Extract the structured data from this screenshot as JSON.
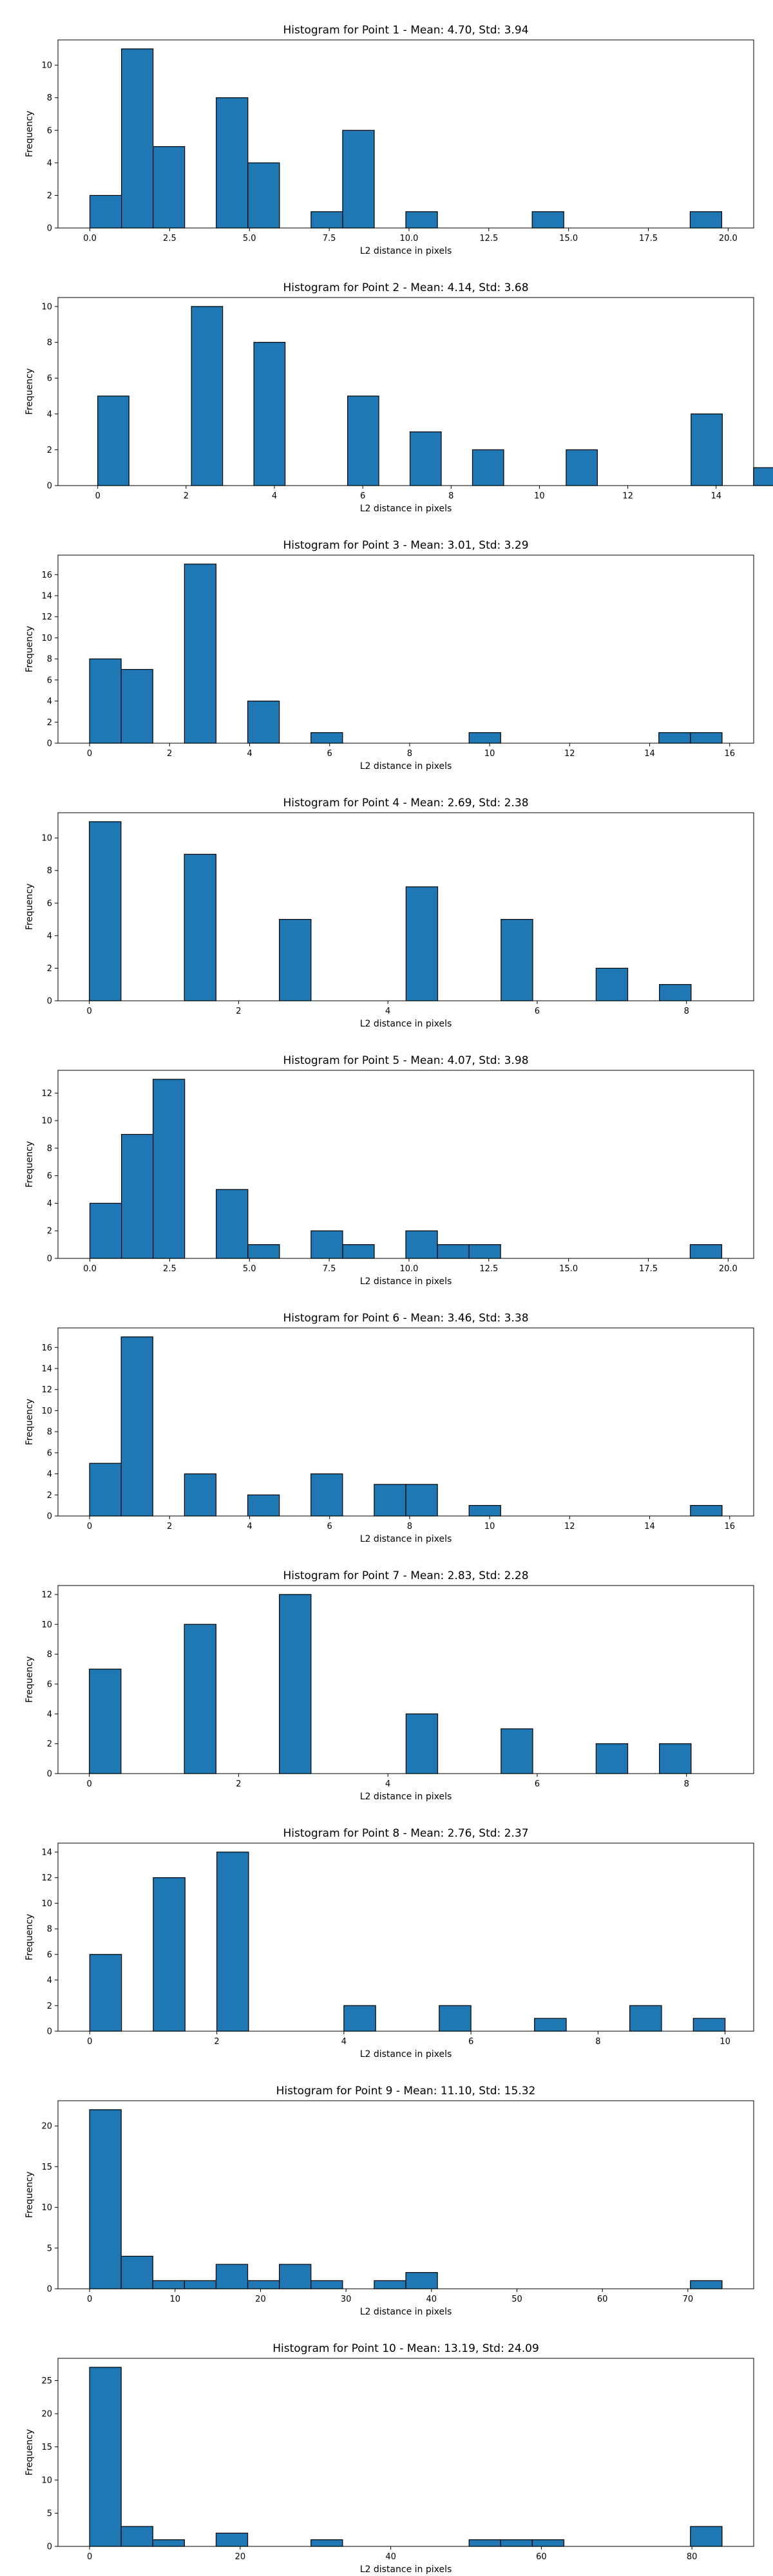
{
  "figure": {
    "xlabel": "L2 distance in pixels",
    "ylabel": "Frequency",
    "bar_color": "#1f77b4",
    "edge_color": "#000000"
  },
  "chart_data": [
    {
      "type": "bar",
      "title": "Histogram for Point 1 - Mean: 4.70, Std: 3.94",
      "xlabel": "L2 distance in pixels",
      "ylabel": "Frequency",
      "bin_start": 0.0,
      "bin_width": 0.99,
      "counts": [
        2,
        11,
        5,
        0,
        8,
        4,
        0,
        1,
        6,
        0,
        1,
        0,
        0,
        0,
        1,
        0,
        0,
        0,
        0,
        1
      ],
      "xlim": [
        -1.0,
        20.8
      ],
      "ylim": [
        0,
        11.55
      ],
      "xticks": [
        0.0,
        2.5,
        5.0,
        7.5,
        10.0,
        12.5,
        15.0,
        17.5,
        20.0
      ],
      "xticklabels": [
        "0.0",
        "2.5",
        "5.0",
        "7.5",
        "10.0",
        "12.5",
        "15.0",
        "17.5",
        "20.0"
      ],
      "yticks": [
        0,
        2,
        4,
        6,
        8,
        10
      ],
      "yticklabels": [
        "0",
        "2",
        "4",
        "6",
        "8",
        "10"
      ]
    },
    {
      "type": "bar",
      "title": "Histogram for Point 2 - Mean: 4.14, Std: 3.68",
      "xlabel": "L2 distance in pixels",
      "ylabel": "Frequency",
      "bin_start": 0.0,
      "bin_width": 0.707,
      "counts": [
        5,
        0,
        0,
        10,
        0,
        8,
        0,
        0,
        5,
        0,
        3,
        0,
        2,
        0,
        0,
        2,
        0,
        0,
        0,
        4,
        0,
        1
      ],
      "xlim": [
        -0.9,
        14.85
      ],
      "ylim": [
        0,
        10.5
      ],
      "xticks": [
        0,
        2,
        4,
        6,
        8,
        10,
        12,
        14
      ],
      "xticklabels": [
        "0",
        "2",
        "4",
        "6",
        "8",
        "10",
        "12",
        "14"
      ],
      "yticks": [
        0,
        2,
        4,
        6,
        8,
        10
      ],
      "yticklabels": [
        "0",
        "2",
        "4",
        "6",
        "8",
        "10"
      ]
    },
    {
      "type": "bar",
      "title": "Histogram for Point 3 - Mean: 3.01, Std: 3.29",
      "xlabel": "L2 distance in pixels",
      "ylabel": "Frequency",
      "bin_start": 0.0,
      "bin_width": 0.7905,
      "counts": [
        8,
        7,
        0,
        17,
        0,
        4,
        0,
        1,
        0,
        0,
        0,
        0,
        1,
        0,
        0,
        0,
        0,
        0,
        1,
        1
      ],
      "xlim": [
        -0.79,
        16.6
      ],
      "ylim": [
        0,
        17.85
      ],
      "xticks": [
        0,
        2,
        4,
        6,
        8,
        10,
        12,
        14,
        16
      ],
      "xticklabels": [
        "0",
        "2",
        "4",
        "6",
        "8",
        "10",
        "12",
        "14",
        "16"
      ],
      "yticks": [
        0,
        2,
        4,
        6,
        8,
        10,
        12,
        14,
        16
      ],
      "yticklabels": [
        "0",
        "2",
        "4",
        "6",
        "8",
        "10",
        "12",
        "14",
        "16"
      ]
    },
    {
      "type": "bar",
      "title": "Histogram for Point 4 - Mean: 2.69, Std: 2.38",
      "xlabel": "L2 distance in pixels",
      "ylabel": "Frequency",
      "bin_start": 0.0,
      "bin_width": 0.4243,
      "counts": [
        11,
        0,
        0,
        9,
        0,
        0,
        5,
        0,
        0,
        0,
        7,
        0,
        0,
        5,
        0,
        0,
        2,
        0,
        1
      ],
      "xlim": [
        -0.42,
        8.9
      ],
      "ylim": [
        0,
        11.55
      ],
      "xticks": [
        0,
        2,
        4,
        6,
        8
      ],
      "xticklabels": [
        "0",
        "2",
        "4",
        "6",
        "8"
      ],
      "yticks": [
        0,
        2,
        4,
        6,
        8,
        10
      ],
      "yticklabels": [
        "0",
        "2",
        "4",
        "6",
        "8",
        "10"
      ]
    },
    {
      "type": "bar",
      "title": "Histogram for Point 5 - Mean: 4.07, Std: 3.98",
      "xlabel": "L2 distance in pixels",
      "ylabel": "Frequency",
      "bin_start": 0.0,
      "bin_width": 0.99,
      "counts": [
        4,
        9,
        13,
        0,
        5,
        1,
        0,
        2,
        1,
        0,
        2,
        1,
        1,
        0,
        0,
        0,
        0,
        0,
        0,
        1
      ],
      "xlim": [
        -1.0,
        20.8
      ],
      "ylim": [
        0,
        13.65
      ],
      "xticks": [
        0.0,
        2.5,
        5.0,
        7.5,
        10.0,
        12.5,
        15.0,
        17.5,
        20.0
      ],
      "xticklabels": [
        "0.0",
        "2.5",
        "5.0",
        "7.5",
        "10.0",
        "12.5",
        "15.0",
        "17.5",
        "20.0"
      ],
      "yticks": [
        0,
        2,
        4,
        6,
        8,
        10,
        12
      ],
      "yticklabels": [
        "0",
        "2",
        "4",
        "6",
        "8",
        "10",
        "12"
      ]
    },
    {
      "type": "bar",
      "title": "Histogram for Point 6 - Mean: 3.46, Std: 3.38",
      "xlabel": "L2 distance in pixels",
      "ylabel": "Frequency",
      "bin_start": 0.0,
      "bin_width": 0.7905,
      "counts": [
        5,
        17,
        0,
        4,
        0,
        2,
        0,
        4,
        0,
        3,
        3,
        0,
        1,
        0,
        0,
        0,
        0,
        0,
        0,
        1
      ],
      "xlim": [
        -0.79,
        16.6
      ],
      "ylim": [
        0,
        17.85
      ],
      "xticks": [
        0,
        2,
        4,
        6,
        8,
        10,
        12,
        14,
        16
      ],
      "xticklabels": [
        "0",
        "2",
        "4",
        "6",
        "8",
        "10",
        "12",
        "14",
        "16"
      ],
      "yticks": [
        0,
        2,
        4,
        6,
        8,
        10,
        12,
        14,
        16
      ],
      "yticklabels": [
        "0",
        "2",
        "4",
        "6",
        "8",
        "10",
        "12",
        "14",
        "16"
      ]
    },
    {
      "type": "bar",
      "title": "Histogram for Point 7 - Mean: 2.83, Std: 2.28",
      "xlabel": "L2 distance in pixels",
      "ylabel": "Frequency",
      "bin_start": 0.0,
      "bin_width": 0.4243,
      "counts": [
        7,
        0,
        0,
        10,
        0,
        0,
        12,
        0,
        0,
        0,
        4,
        0,
        0,
        3,
        0,
        0,
        2,
        0,
        2
      ],
      "xlim": [
        -0.42,
        8.9
      ],
      "ylim": [
        0,
        12.6
      ],
      "xticks": [
        0,
        2,
        4,
        6,
        8
      ],
      "xticklabels": [
        "0",
        "2",
        "4",
        "6",
        "8"
      ],
      "yticks": [
        0,
        2,
        4,
        6,
        8,
        10,
        12
      ],
      "yticklabels": [
        "0",
        "2",
        "4",
        "6",
        "8",
        "10",
        "12"
      ]
    },
    {
      "type": "bar",
      "title": "Histogram for Point 8 - Mean: 2.76, Std: 2.37",
      "xlabel": "L2 distance in pixels",
      "ylabel": "Frequency",
      "bin_start": 0.0,
      "bin_width": 0.5,
      "counts": [
        6,
        0,
        12,
        0,
        14,
        0,
        0,
        0,
        2,
        0,
        0,
        2,
        0,
        0,
        1,
        0,
        0,
        2,
        0,
        1
      ],
      "xlim": [
        -0.5,
        10.45
      ],
      "ylim": [
        0,
        14.7
      ],
      "xticks": [
        0,
        2,
        4,
        6,
        8,
        10
      ],
      "xticklabels": [
        "0",
        "2",
        "4",
        "6",
        "8",
        "10"
      ],
      "yticks": [
        0,
        2,
        4,
        6,
        8,
        10,
        12,
        14
      ],
      "yticklabels": [
        "0",
        "2",
        "4",
        "6",
        "8",
        "10",
        "12",
        "14"
      ]
    },
    {
      "type": "bar",
      "title": "Histogram for Point 9 - Mean: 11.10, Std: 15.32",
      "xlabel": "L2 distance in pixels",
      "ylabel": "Frequency",
      "bin_start": 0.0,
      "bin_width": 3.7,
      "counts": [
        22,
        4,
        1,
        1,
        3,
        1,
        3,
        1,
        0,
        1,
        2,
        0,
        0,
        0,
        0,
        0,
        0,
        0,
        0,
        1
      ],
      "xlim": [
        -3.7,
        77.7
      ],
      "ylim": [
        0,
        23.1
      ],
      "xticks": [
        0,
        10,
        20,
        30,
        40,
        50,
        60,
        70
      ],
      "xticklabels": [
        "0",
        "10",
        "20",
        "30",
        "40",
        "50",
        "60",
        "70"
      ],
      "yticks": [
        0,
        5,
        10,
        15,
        20
      ],
      "yticklabels": [
        "0",
        "5",
        "10",
        "15",
        "20"
      ]
    },
    {
      "type": "bar",
      "title": "Histogram for Point 10 - Mean: 13.19, Std: 24.09",
      "xlabel": "L2 distance in pixels",
      "ylabel": "Frequency",
      "bin_start": 0.0,
      "bin_width": 4.2,
      "counts": [
        27,
        3,
        1,
        0,
        2,
        0,
        0,
        1,
        0,
        0,
        0,
        0,
        1,
        1,
        1,
        0,
        0,
        0,
        0,
        3
      ],
      "xlim": [
        -4.2,
        88.2
      ],
      "ylim": [
        0,
        28.35
      ],
      "xticks": [
        0,
        20,
        40,
        60,
        80
      ],
      "xticklabels": [
        "0",
        "20",
        "40",
        "60",
        "80"
      ],
      "yticks": [
        0,
        5,
        10,
        15,
        20,
        25
      ],
      "yticklabels": [
        "0",
        "5",
        "10",
        "15",
        "20",
        "25"
      ]
    }
  ]
}
